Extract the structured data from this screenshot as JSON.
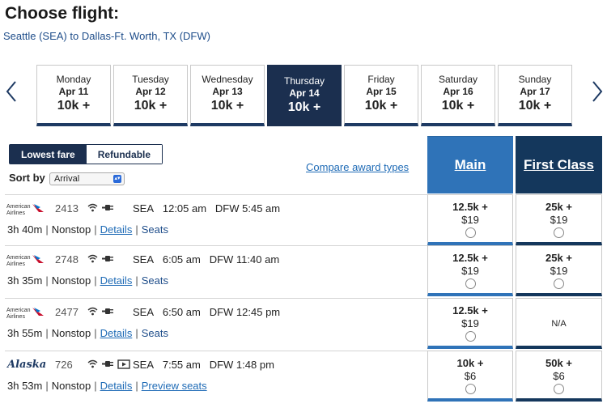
{
  "header": {
    "title": "Choose flight:",
    "route": "Seattle (SEA) to Dallas-Ft. Worth, TX (DFW)"
  },
  "days": [
    {
      "name": "Monday",
      "date": "Apr 11",
      "price": "10k +",
      "active": false
    },
    {
      "name": "Tuesday",
      "date": "Apr 12",
      "price": "10k +",
      "active": false
    },
    {
      "name": "Wednesday",
      "date": "Apr 13",
      "price": "10k +",
      "active": false
    },
    {
      "name": "Thursday",
      "date": "Apr 14",
      "price": "10k +",
      "active": true
    },
    {
      "name": "Friday",
      "date": "Apr 15",
      "price": "10k +",
      "active": false
    },
    {
      "name": "Saturday",
      "date": "Apr 16",
      "price": "10k +",
      "active": false
    },
    {
      "name": "Sunday",
      "date": "Apr 17",
      "price": "10k +",
      "active": false
    }
  ],
  "toggle": {
    "lowest_fare": "Lowest fare",
    "refundable": "Refundable"
  },
  "sort": {
    "label": "Sort by",
    "value": "Arrival"
  },
  "compare_link": "Compare award types",
  "cabins": {
    "main": "Main",
    "first": "First Class"
  },
  "flights": [
    {
      "airline": "American Airlines",
      "logo_line1": "American",
      "logo_line2": "Airlines",
      "number": "2413",
      "depart_code": "SEA",
      "depart_time": "12:05 am",
      "arrive_code": "DFW",
      "arrive_time": "5:45 am",
      "duration": "3h 40m",
      "stops": "Nonstop",
      "details": "Details",
      "seats": "Seats",
      "main": {
        "miles": "12.5k +",
        "tax": "$19"
      },
      "first": {
        "miles": "25k +",
        "tax": "$19",
        "na": ""
      }
    },
    {
      "airline": "American Airlines",
      "logo_line1": "American",
      "logo_line2": "Airlines",
      "number": "2748",
      "depart_code": "SEA",
      "depart_time": "6:05 am",
      "arrive_code": "DFW",
      "arrive_time": "11:40 am",
      "duration": "3h 35m",
      "stops": "Nonstop",
      "details": "Details",
      "seats": "Seats",
      "main": {
        "miles": "12.5k +",
        "tax": "$19"
      },
      "first": {
        "miles": "25k +",
        "tax": "$19",
        "na": ""
      }
    },
    {
      "airline": "American Airlines",
      "logo_line1": "American",
      "logo_line2": "Airlines",
      "number": "2477",
      "depart_code": "SEA",
      "depart_time": "6:50 am",
      "arrive_code": "DFW",
      "arrive_time": "12:45 pm",
      "duration": "3h 55m",
      "stops": "Nonstop",
      "details": "Details",
      "seats": "Seats",
      "main": {
        "miles": "12.5k +",
        "tax": "$19"
      },
      "first": {
        "miles": "",
        "tax": "",
        "na": "N/A"
      }
    },
    {
      "airline": "Alaska",
      "logo_line1": "Alaska",
      "logo_line2": "",
      "number": "726",
      "depart_code": "SEA",
      "depart_time": "7:55 am",
      "arrive_code": "DFW",
      "arrive_time": "1:48 pm",
      "duration": "3h 53m",
      "stops": "Nonstop",
      "details": "Details",
      "seats": "Preview seats",
      "main": {
        "miles": "10k +",
        "tax": "$6"
      },
      "first": {
        "miles": "50k +",
        "tax": "$6",
        "na": ""
      }
    }
  ],
  "icons": {
    "wifi": "wifi-icon",
    "power": "power-icon",
    "video": "video-icon"
  },
  "colors": {
    "navy": "#1b2f4f",
    "main_blue": "#2f73b8",
    "first_navy": "#14375c",
    "link": "#1f6bb6"
  }
}
